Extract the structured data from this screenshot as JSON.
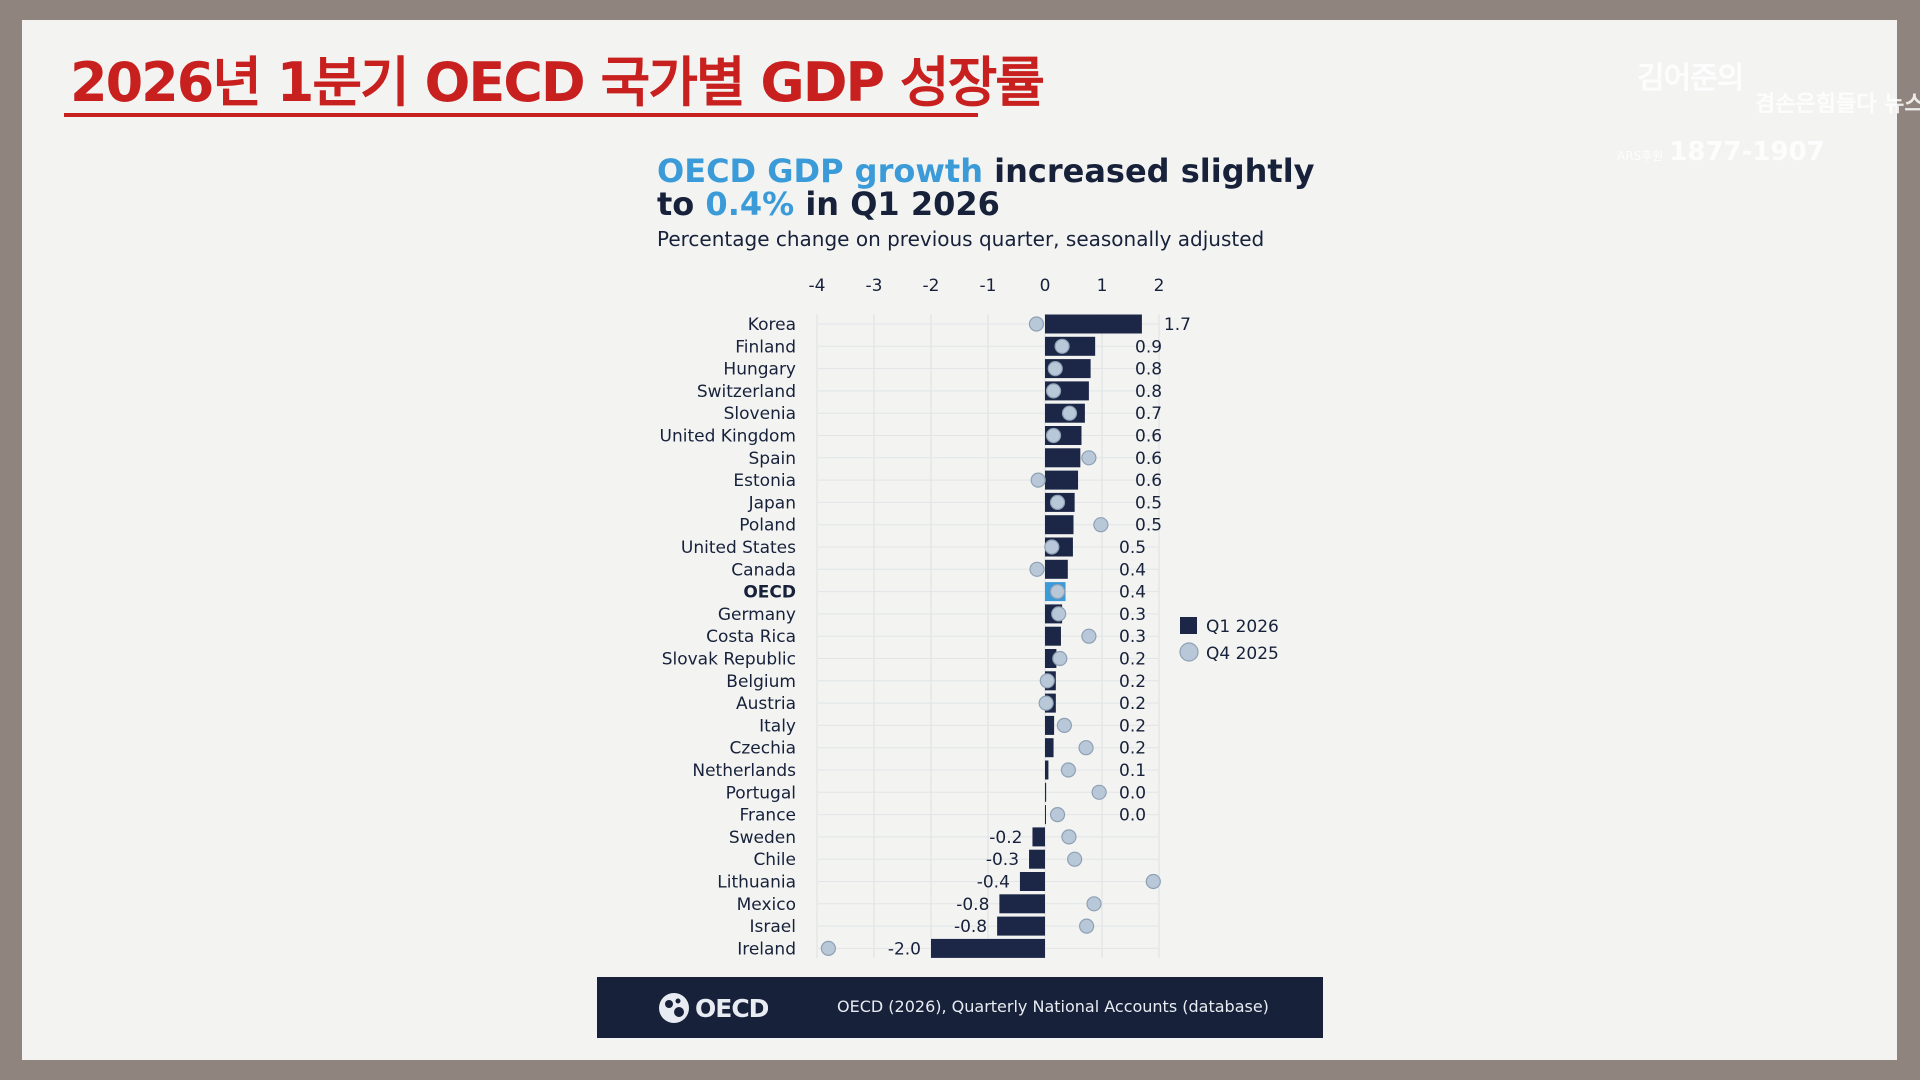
{
  "slide": {
    "headline": "2026년 1분기 OECD 국가별 GDP 성장률",
    "watermark": {
      "line1": "김어준의",
      "line2": "겸손은힘들다 뉴스공장",
      "ars_label": "ARS후원",
      "phone": "1877-1907"
    }
  },
  "chart_title": {
    "part1": "OECD GDP growth",
    "part2": " increased slightly",
    "part3": "to ",
    "part4": "0.4%",
    "part5": " in Q1 2026"
  },
  "footer": {
    "logo_text": "OECD",
    "source": "OECD (2026), Quarterly National Accounts (database)"
  },
  "colors": {
    "headline_red": "#c8201e",
    "title_blue": "#3b9bd8",
    "navy": "#17213a",
    "bar": "#1c2748",
    "dot_fill": "#b8c8d8",
    "dot_stroke": "#8ea0b4",
    "highlight": "#3b9bd8"
  },
  "chart_data": {
    "type": "bar",
    "orientation": "horizontal",
    "subtitle": "Percentage change on previous quarter, seasonally adjusted",
    "xlim": [
      -4,
      2
    ],
    "x_ticks": [
      "-4",
      "-3",
      "-2",
      "-1",
      "0",
      "1",
      "2"
    ],
    "grid": true,
    "legend_position": "right",
    "categories": [
      "Korea",
      "Finland",
      "Hungary",
      "Switzerland",
      "Slovenia",
      "United Kingdom",
      "Spain",
      "Estonia",
      "Japan",
      "Poland",
      "United States",
      "Canada",
      "OECD",
      "Germany",
      "Costa Rica",
      "Slovak Republic",
      "Belgium",
      "Austria",
      "Italy",
      "Czechia",
      "Netherlands",
      "Portugal",
      "France",
      "Sweden",
      "Chile",
      "Lithuania",
      "Mexico",
      "Israel",
      "Ireland"
    ],
    "highlight_category": "OECD",
    "series": [
      {
        "name": "Q1 2026",
        "style": "bar",
        "values": [
          1.7,
          0.88,
          0.8,
          0.77,
          0.7,
          0.64,
          0.62,
          0.58,
          0.52,
          0.5,
          0.49,
          0.4,
          0.36,
          0.3,
          0.28,
          0.2,
          0.19,
          0.19,
          0.16,
          0.15,
          0.06,
          0.02,
          0.01,
          -0.22,
          -0.28,
          -0.44,
          -0.8,
          -0.84,
          -2.0
        ],
        "labels": [
          "1.7",
          "0.9",
          "0.8",
          "0.8",
          "0.7",
          "0.6",
          "0.6",
          "0.6",
          "0.5",
          "0.5",
          "0.5",
          "0.4",
          "0.4",
          "0.3",
          "0.3",
          "0.2",
          "0.2",
          "0.2",
          "0.2",
          "0.2",
          "0.1",
          "0.0",
          "0.0",
          "-0.2",
          "-0.3",
          "-0.4",
          "-0.8",
          "-0.8",
          "-2.0"
        ]
      },
      {
        "name": "Q4 2025",
        "style": "dot",
        "values": [
          -0.15,
          0.3,
          0.18,
          0.15,
          0.43,
          0.15,
          0.77,
          -0.12,
          0.22,
          0.98,
          0.12,
          -0.14,
          0.22,
          0.24,
          0.77,
          0.26,
          0.04,
          0.02,
          0.34,
          0.72,
          0.41,
          0.95,
          0.22,
          0.42,
          0.52,
          1.9,
          0.86,
          0.73,
          -3.8
        ]
      }
    ]
  }
}
